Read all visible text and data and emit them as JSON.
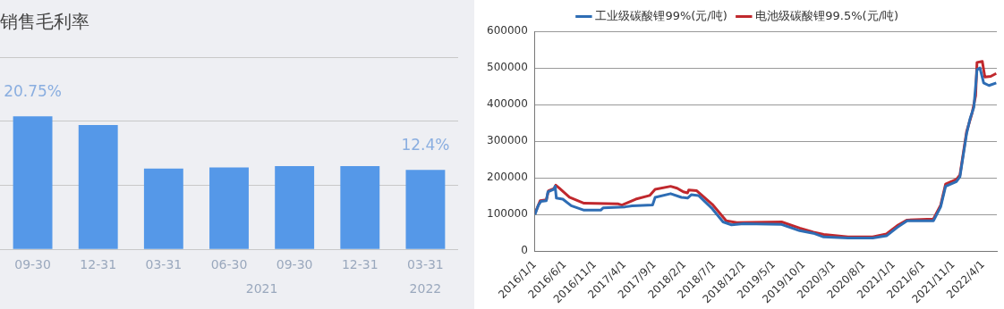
{
  "chart_data": [
    {
      "type": "bar",
      "title": "销售毛利率",
      "categories": [
        "09-30",
        "12-31",
        "03-31",
        "06-30",
        "09-30",
        "12-31",
        "03-31"
      ],
      "values": [
        20.75,
        19.4,
        12.6,
        12.8,
        13.0,
        13.0,
        12.4
      ],
      "color": "#5598e8",
      "value_labels": [
        "20.75%",
        null,
        null,
        null,
        null,
        null,
        "12.4%"
      ],
      "ylim": [
        0,
        30
      ],
      "yticks": [
        {
          "value": 0,
          "label": null
        },
        {
          "value": 10,
          "label": null
        },
        {
          "value": 20,
          "label": null
        },
        {
          "value": 30,
          "label": null
        }
      ],
      "tick_labels": "x",
      "grid": "y",
      "annotations": [
        "2021",
        "2022"
      ]
    },
    {
      "type": "line",
      "legend": "top",
      "grid": "y",
      "ylim": [
        0,
        600000
      ],
      "yticks": [
        0,
        100000,
        200000,
        300000,
        400000,
        500000,
        600000
      ],
      "xlim": [
        "2016-01-01",
        "2022-06-10"
      ],
      "xticks": [
        {
          "value": "2016-01-01",
          "label": "2016/1/1"
        },
        {
          "value": "2016-06-01",
          "label": "2016/6/1"
        },
        {
          "value": "2016-11-01",
          "label": "2016/11/1"
        },
        {
          "value": "2017-04-01",
          "label": "2017/4/1"
        },
        {
          "value": "2017-09-01",
          "label": "2017/9/1"
        },
        {
          "value": "2018-02-01",
          "label": "2018/2/1"
        },
        {
          "value": "2018-07-01",
          "label": "2018/7/1"
        },
        {
          "value": "2018-12-01",
          "label": "2018/12/1"
        },
        {
          "value": "2019-05-01",
          "label": "2019/5/1"
        },
        {
          "value": "2019-10-01",
          "label": "2019/10/1"
        },
        {
          "value": "2020-03-01",
          "label": "2020/3/1"
        },
        {
          "value": "2020-08-01",
          "label": "2020/8/1"
        },
        {
          "value": "2021-01-01",
          "label": "2021/1/1"
        },
        {
          "value": "2021-06-01",
          "label": "2021/6/1"
        },
        {
          "value": "2021-11-01",
          "label": "2021/11/1"
        },
        {
          "value": "2022-04-01",
          "label": "2022/4/1"
        }
      ],
      "series": [
        {
          "name": "工业级碳酸锂99%(元/吨)",
          "color": "#2e6db4",
          "x": [
            "2016-01-01",
            "2016-01-19",
            "2016-02-01",
            "2016-02-28",
            "2016-03-07",
            "2016-04-07",
            "2016-04-13",
            "2016-04-19",
            "2016-05-22",
            "2016-07-04",
            "2016-09-07",
            "2016-12-01",
            "2016-12-13",
            "2017-04-04",
            "2017-05-10",
            "2017-08-22",
            "2017-09-04",
            "2017-11-22",
            "2018-01-16",
            "2018-02-16",
            "2018-03-07",
            "2018-04-13",
            "2018-06-22",
            "2018-08-16",
            "2018-09-28",
            "2018-11-28",
            "2019-06-10",
            "2019-09-10",
            "2019-11-19",
            "2020-01-10",
            "2020-05-13",
            "2020-09-16",
            "2020-11-25",
            "2021-01-19",
            "2021-03-10",
            "2021-07-22",
            "2021-08-28",
            "2021-09-22",
            "2021-11-16",
            "2021-12-04",
            "2022-01-07",
            "2022-01-25",
            "2022-02-13",
            "2022-03-01",
            "2022-03-16",
            "2022-04-04",
            "2022-05-01",
            "2022-06-07"
          ],
          "values": [
            100000,
            126000,
            136000,
            138000,
            162000,
            169000,
            177000,
            145000,
            142000,
            124000,
            112000,
            112000,
            118000,
            121000,
            124000,
            126000,
            147000,
            157000,
            147000,
            145000,
            154000,
            152000,
            116000,
            80000,
            72000,
            75000,
            73000,
            56000,
            49000,
            39000,
            36000,
            36000,
            42000,
            65000,
            83000,
            83000,
            121000,
            177000,
            190000,
            203000,
            321000,
            362000,
            393000,
            495000,
            500000,
            459000,
            452000,
            459000
          ]
        },
        {
          "name": "电池级碳酸锂99.5%(元/吨)",
          "color": "#c0282d",
          "x": [
            "2016-01-01",
            "2016-01-28",
            "2016-02-28",
            "2016-03-10",
            "2016-04-07",
            "2016-04-16",
            "2016-05-04",
            "2016-06-25",
            "2016-09-07",
            "2017-03-01",
            "2017-03-19",
            "2017-05-28",
            "2017-08-07",
            "2017-09-04",
            "2017-11-22",
            "2017-12-25",
            "2018-01-25",
            "2018-02-16",
            "2018-02-22",
            "2018-04-04",
            "2018-06-22",
            "2018-09-01",
            "2018-10-25",
            "2019-06-10",
            "2019-09-10",
            "2019-11-19",
            "2020-01-10",
            "2020-05-13",
            "2020-09-16",
            "2020-11-25",
            "2021-01-19",
            "2021-03-10",
            "2021-07-22",
            "2021-08-28",
            "2021-09-22",
            "2021-11-16",
            "2021-12-04",
            "2022-01-07",
            "2022-02-04",
            "2022-02-22",
            "2022-03-01",
            "2022-03-28",
            "2022-04-10",
            "2022-05-10",
            "2022-06-07"
          ],
          "values": [
            103000,
            138000,
            140000,
            165000,
            171000,
            180000,
            172000,
            147000,
            131000,
            129000,
            126000,
            142000,
            152000,
            169000,
            177000,
            172000,
            162000,
            159000,
            167000,
            165000,
            128000,
            83000,
            78000,
            80000,
            63000,
            52000,
            46000,
            39000,
            39000,
            47000,
            70000,
            85000,
            88000,
            126000,
            183000,
            196000,
            208000,
            326000,
            377000,
            424000,
            515000,
            518000,
            475000,
            477000,
            485000
          ]
        }
      ]
    }
  ]
}
